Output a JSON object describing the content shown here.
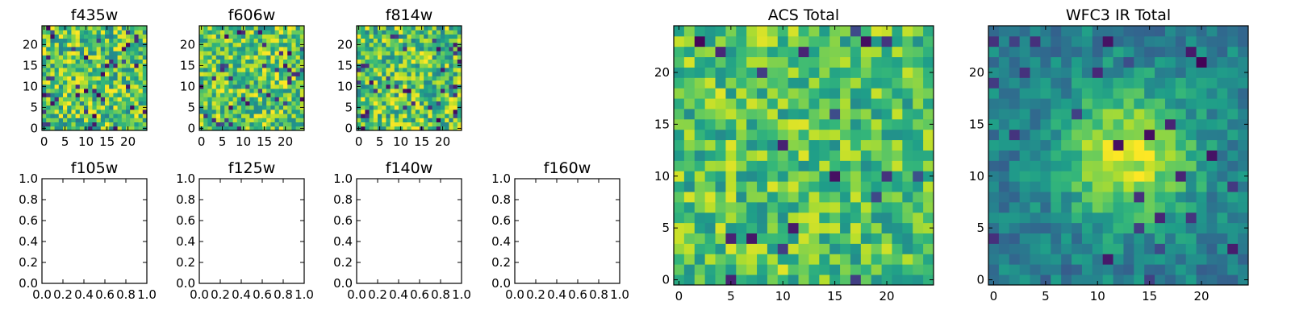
{
  "chart_data": [
    {
      "type": "heatmap",
      "title": "f435w",
      "grid_size": [
        25,
        25
      ],
      "x_ticks": [
        "0",
        "5",
        "10",
        "15",
        "20"
      ],
      "y_ticks": [
        "0",
        "5",
        "10",
        "15",
        "20"
      ],
      "xlim": [
        -0.5,
        24.5
      ],
      "ylim": [
        -0.5,
        24.5
      ],
      "colormap": "viridis",
      "pattern": {
        "kind": "noise",
        "seed": 11,
        "base": 0.72,
        "spread": 0.3,
        "dark_rate": 0.06
      }
    },
    {
      "type": "heatmap",
      "title": "f606w",
      "grid_size": [
        25,
        25
      ],
      "x_ticks": [
        "0",
        "5",
        "10",
        "15",
        "20"
      ],
      "y_ticks": [
        "0",
        "5",
        "10",
        "15",
        "20"
      ],
      "xlim": [
        -0.5,
        24.5
      ],
      "ylim": [
        -0.5,
        24.5
      ],
      "colormap": "viridis",
      "pattern": {
        "kind": "noise",
        "seed": 23,
        "base": 0.74,
        "spread": 0.28,
        "dark_rate": 0.05
      }
    },
    {
      "type": "heatmap",
      "title": "f814w",
      "grid_size": [
        25,
        25
      ],
      "x_ticks": [
        "0",
        "5",
        "10",
        "15",
        "20"
      ],
      "y_ticks": [
        "0",
        "5",
        "10",
        "15",
        "20"
      ],
      "xlim": [
        -0.5,
        24.5
      ],
      "ylim": [
        -0.5,
        24.5
      ],
      "colormap": "viridis",
      "pattern": {
        "kind": "noise",
        "seed": 37,
        "base": 0.72,
        "spread": 0.3,
        "dark_rate": 0.06
      }
    },
    {
      "type": "empty",
      "title": "f105w",
      "x_ticks": [
        "0.0",
        "0.2",
        "0.4",
        "0.6",
        "0.8",
        "1.0"
      ],
      "y_ticks": [
        "0.0",
        "0.2",
        "0.4",
        "0.6",
        "0.8",
        "1.0"
      ],
      "xlim": [
        0,
        1
      ],
      "ylim": [
        0,
        1
      ]
    },
    {
      "type": "empty",
      "title": "f125w",
      "x_ticks": [
        "0.0",
        "0.2",
        "0.4",
        "0.6",
        "0.8",
        "1.0"
      ],
      "y_ticks": [
        "0.0",
        "0.2",
        "0.4",
        "0.6",
        "0.8",
        "1.0"
      ],
      "xlim": [
        0,
        1
      ],
      "ylim": [
        0,
        1
      ]
    },
    {
      "type": "empty",
      "title": "f140w",
      "x_ticks": [
        "0.0",
        "0.2",
        "0.4",
        "0.6",
        "0.8",
        "1.0"
      ],
      "y_ticks": [
        "0.0",
        "0.2",
        "0.4",
        "0.6",
        "0.8",
        "1.0"
      ],
      "xlim": [
        0,
        1
      ],
      "ylim": [
        0,
        1
      ]
    },
    {
      "type": "empty",
      "title": "f160w",
      "x_ticks": [
        "0.0",
        "0.2",
        "0.4",
        "0.6",
        "0.8",
        "1.0"
      ],
      "y_ticks": [
        "0.0",
        "0.2",
        "0.4",
        "0.6",
        "0.8",
        "1.0"
      ],
      "xlim": [
        0,
        1
      ],
      "ylim": [
        0,
        1
      ]
    },
    {
      "type": "heatmap",
      "title": "ACS Total",
      "grid_size": [
        25,
        25
      ],
      "x_ticks": [
        "0",
        "5",
        "10",
        "15",
        "20"
      ],
      "y_ticks": [
        "0",
        "5",
        "10",
        "15",
        "20"
      ],
      "xlim": [
        -0.5,
        24.5
      ],
      "ylim": [
        -0.5,
        24.5
      ],
      "colormap": "viridis",
      "pattern": {
        "kind": "noise",
        "seed": 53,
        "base": 0.72,
        "spread": 0.24,
        "dark_rate": 0.035
      }
    },
    {
      "type": "heatmap",
      "title": "WFC3 IR Total",
      "grid_size": [
        25,
        25
      ],
      "x_ticks": [
        "0",
        "5",
        "10",
        "15",
        "20"
      ],
      "y_ticks": [
        "0",
        "5",
        "10",
        "15",
        "20"
      ],
      "xlim": [
        -0.5,
        24.5
      ],
      "ylim": [
        -0.5,
        24.5
      ],
      "colormap": "viridis",
      "pattern": {
        "kind": "blob",
        "seed": 71,
        "center": [
          13,
          12
        ],
        "peak": 0.95,
        "base": 0.42,
        "sigma": 4.5,
        "noise": 0.14,
        "dark_rate": 0.04
      }
    }
  ]
}
